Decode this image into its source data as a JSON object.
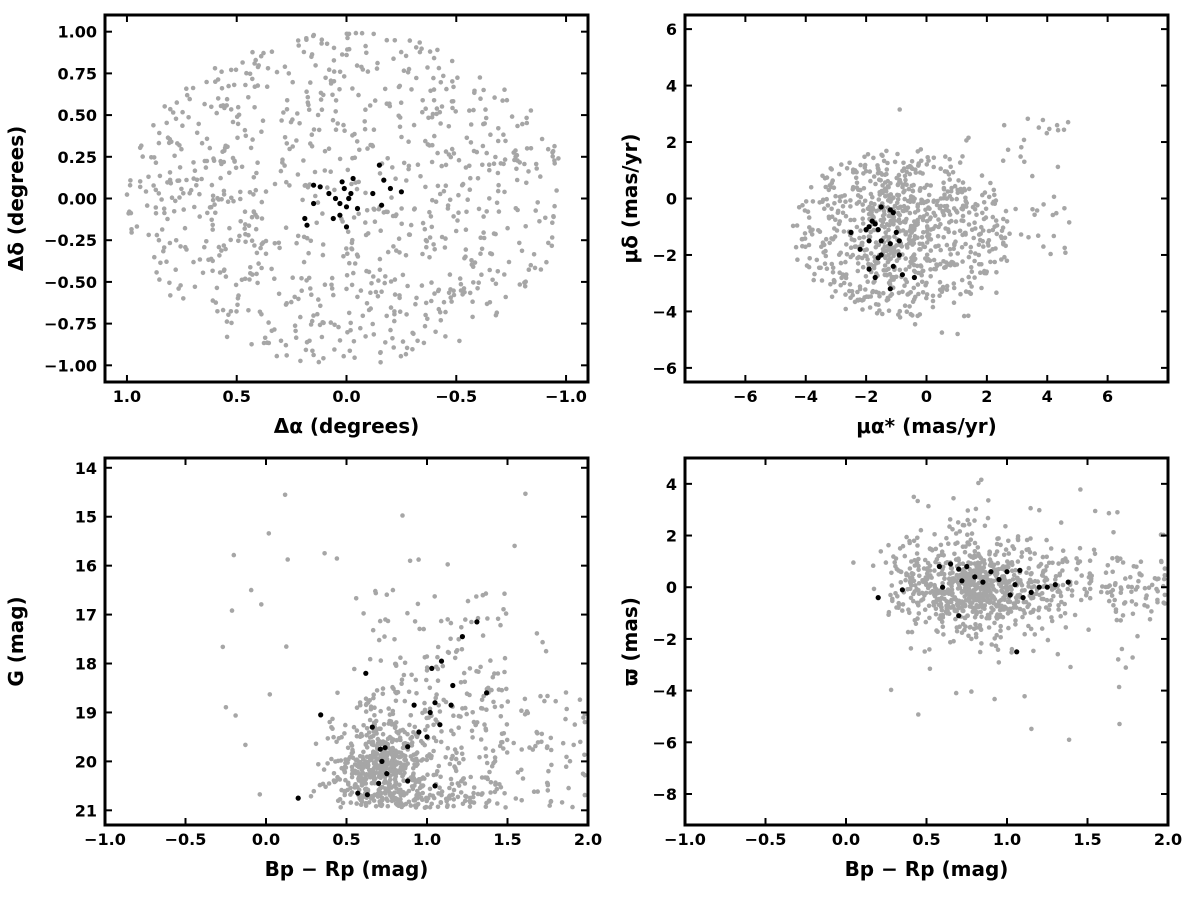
{
  "chart_data": [
    {
      "type": "scatter",
      "id": "sky",
      "xlabel": "Δα (degrees)",
      "ylabel": "Δδ (degrees)",
      "xlim": [
        1.1,
        -1.1
      ],
      "ylim": [
        -1.1,
        1.1
      ],
      "xticks": [
        1.0,
        0.5,
        0.0,
        -0.5,
        -1.0
      ],
      "xtick_labels": [
        "1.0",
        "0.5",
        "0.0",
        "−0.5",
        "−1.0"
      ],
      "yticks": [
        -1.0,
        -0.75,
        -0.5,
        -0.25,
        0.0,
        0.25,
        0.5,
        0.75,
        1.0
      ],
      "ytick_labels": [
        "−1.00",
        "−0.75",
        "−0.50",
        "−0.25",
        "0.00",
        "0.25",
        "0.50",
        "0.75",
        "1.00"
      ],
      "series": [
        {
          "color": "#a6a6a6",
          "marker": "dot",
          "count": 900,
          "distribution": {
            "shape": "uniform-disk",
            "cx": 0.0,
            "cy": 0.0,
            "radius": 1.0
          }
        },
        {
          "color": "#000000",
          "marker": "dot",
          "points": [
            [
              0.15,
              0.08
            ],
            [
              0.12,
              0.07
            ],
            [
              0.08,
              0.03
            ],
            [
              0.05,
              0.0
            ],
            [
              0.02,
              0.1
            ],
            [
              0.01,
              0.06
            ],
            [
              -0.02,
              0.03
            ],
            [
              -0.03,
              0.12
            ],
            [
              0.0,
              -0.05
            ],
            [
              0.03,
              -0.1
            ],
            [
              0.06,
              -0.12
            ],
            [
              0.15,
              -0.03
            ],
            [
              0.18,
              -0.16
            ],
            [
              0.19,
              -0.12
            ],
            [
              0.0,
              -0.17
            ],
            [
              -0.05,
              -0.06
            ],
            [
              -0.12,
              0.03
            ],
            [
              -0.15,
              0.2
            ],
            [
              -0.17,
              0.11
            ],
            [
              -0.2,
              0.06
            ],
            [
              -0.25,
              0.04
            ],
            [
              -0.16,
              -0.04
            ],
            [
              0.03,
              -0.03
            ],
            [
              -0.01,
              0.0
            ]
          ]
        }
      ]
    },
    {
      "type": "scatter",
      "id": "proper-motion",
      "xlabel": "μα* (mas/yr)",
      "ylabel": "μδ (mas/yr)",
      "xlim": [
        -8,
        8
      ],
      "ylim": [
        -6.5,
        6.5
      ],
      "xticks": [
        -6,
        -4,
        -2,
        0,
        2,
        4,
        6
      ],
      "xtick_labels": [
        "−6",
        "−4",
        "−2",
        "0",
        "2",
        "4",
        "6"
      ],
      "yticks": [
        -6,
        -4,
        -2,
        0,
        2,
        4,
        6
      ],
      "ytick_labels": [
        "−6",
        "−4",
        "−2",
        "0",
        "2",
        "4",
        "6"
      ],
      "series": [
        {
          "color": "#a6a6a6",
          "marker": "dot",
          "count": 900,
          "distribution": {
            "shape": "ellipse",
            "cx": -0.8,
            "cy": -1.2,
            "rx": 3.6,
            "ry": 3.0
          }
        },
        {
          "color": "#000000",
          "marker": "dot",
          "points": [
            [
              -1.5,
              -0.3
            ],
            [
              -1.7,
              -0.9
            ],
            [
              -1.9,
              -1.0
            ],
            [
              -2.0,
              -1.1
            ],
            [
              -1.6,
              -1.1
            ],
            [
              -1.2,
              -0.4
            ],
            [
              -1.1,
              -0.5
            ],
            [
              -1.9,
              -1.5
            ],
            [
              -2.2,
              -1.8
            ],
            [
              -1.5,
              -1.5
            ],
            [
              -1.5,
              -2.0
            ],
            [
              -1.2,
              -1.6
            ],
            [
              -0.9,
              -1.5
            ],
            [
              -1.6,
              -2.1
            ],
            [
              -1.9,
              -2.5
            ],
            [
              -1.7,
              -2.8
            ],
            [
              -1.1,
              -2.4
            ],
            [
              -0.9,
              -2.0
            ],
            [
              -0.8,
              -2.7
            ],
            [
              -0.4,
              -2.8
            ],
            [
              -1.2,
              -3.2
            ],
            [
              -2.5,
              -1.2
            ],
            [
              -1.0,
              -1.2
            ],
            [
              -1.8,
              -0.8
            ]
          ]
        }
      ]
    },
    {
      "type": "scatter",
      "id": "cmd",
      "xlabel": "Bp − Rp (mag)",
      "ylabel": "G (mag)",
      "xlim": [
        -1.0,
        2.0
      ],
      "ylim": [
        21.3,
        13.8
      ],
      "xticks": [
        -1.0,
        -0.5,
        0.0,
        0.5,
        1.0,
        1.5,
        2.0
      ],
      "xtick_labels": [
        "−1.0",
        "−0.5",
        "0.0",
        "0.5",
        "1.0",
        "1.5",
        "2.0"
      ],
      "yticks": [
        14,
        15,
        16,
        17,
        18,
        19,
        20,
        21
      ],
      "ytick_labels": [
        "14",
        "15",
        "16",
        "17",
        "18",
        "19",
        "20",
        "21"
      ],
      "series": [
        {
          "color": "#a6a6a6",
          "marker": "dot",
          "count": 950,
          "distribution": {
            "shape": "cmd-cloud",
            "core_x": 0.72,
            "core_y": 20.1
          }
        },
        {
          "color": "#000000",
          "marker": "dot",
          "points": [
            [
              0.2,
              20.75
            ],
            [
              0.57,
              20.65
            ],
            [
              0.63,
              20.68
            ],
            [
              0.7,
              20.45
            ],
            [
              0.88,
              20.4
            ],
            [
              1.05,
              20.5
            ],
            [
              0.72,
              20.0
            ],
            [
              0.75,
              20.25
            ],
            [
              0.71,
              19.75
            ],
            [
              0.74,
              19.72
            ],
            [
              0.66,
              19.3
            ],
            [
              0.88,
              19.7
            ],
            [
              0.95,
              19.4
            ],
            [
              1.0,
              19.5
            ],
            [
              1.08,
              19.25
            ],
            [
              0.34,
              19.05
            ],
            [
              1.02,
              19.0
            ],
            [
              1.05,
              18.8
            ],
            [
              1.15,
              18.85
            ],
            [
              0.92,
              18.85
            ],
            [
              1.16,
              18.45
            ],
            [
              1.37,
              18.6
            ],
            [
              0.62,
              18.2
            ],
            [
              1.03,
              18.1
            ],
            [
              1.09,
              17.95
            ],
            [
              1.22,
              17.45
            ],
            [
              1.31,
              17.15
            ]
          ]
        }
      ]
    },
    {
      "type": "scatter",
      "id": "parallax",
      "xlabel": "Bp − Rp (mag)",
      "ylabel": "ϖ (mas)",
      "xlim": [
        -1.0,
        2.0
      ],
      "ylim": [
        -9.2,
        5.0
      ],
      "xticks": [
        -1.0,
        -0.5,
        0.0,
        0.5,
        1.0,
        1.5,
        2.0
      ],
      "xtick_labels": [
        "−1.0",
        "−0.5",
        "0.0",
        "0.5",
        "1.0",
        "1.5",
        "2.0"
      ],
      "yticks": [
        -8,
        -6,
        -4,
        -2,
        0,
        2,
        4
      ],
      "ytick_labels": [
        "−8",
        "−6",
        "−4",
        "−2",
        "0",
        "2",
        "4"
      ],
      "series": [
        {
          "color": "#a6a6a6",
          "marker": "dot",
          "count": 950,
          "distribution": {
            "shape": "parallax-band",
            "core_x": 0.8,
            "core_y": 0.0
          }
        },
        {
          "color": "#000000",
          "marker": "dot",
          "points": [
            [
              0.2,
              -0.4
            ],
            [
              0.35,
              -0.1
            ],
            [
              0.58,
              0.8
            ],
            [
              0.6,
              0.0
            ],
            [
              0.65,
              0.9
            ],
            [
              0.7,
              0.7
            ],
            [
              0.72,
              0.25
            ],
            [
              0.75,
              0.8
            ],
            [
              0.7,
              -1.1
            ],
            [
              0.8,
              0.4
            ],
            [
              0.85,
              0.2
            ],
            [
              0.9,
              0.6
            ],
            [
              0.95,
              0.3
            ],
            [
              1.0,
              0.6
            ],
            [
              1.02,
              -0.3
            ],
            [
              1.05,
              0.1
            ],
            [
              1.06,
              -2.5
            ],
            [
              1.08,
              0.65
            ],
            [
              1.1,
              -0.4
            ],
            [
              1.15,
              -0.2
            ],
            [
              1.2,
              0.0
            ],
            [
              1.25,
              0.0
            ],
            [
              1.3,
              0.1
            ],
            [
              1.38,
              0.2
            ]
          ]
        }
      ]
    }
  ]
}
